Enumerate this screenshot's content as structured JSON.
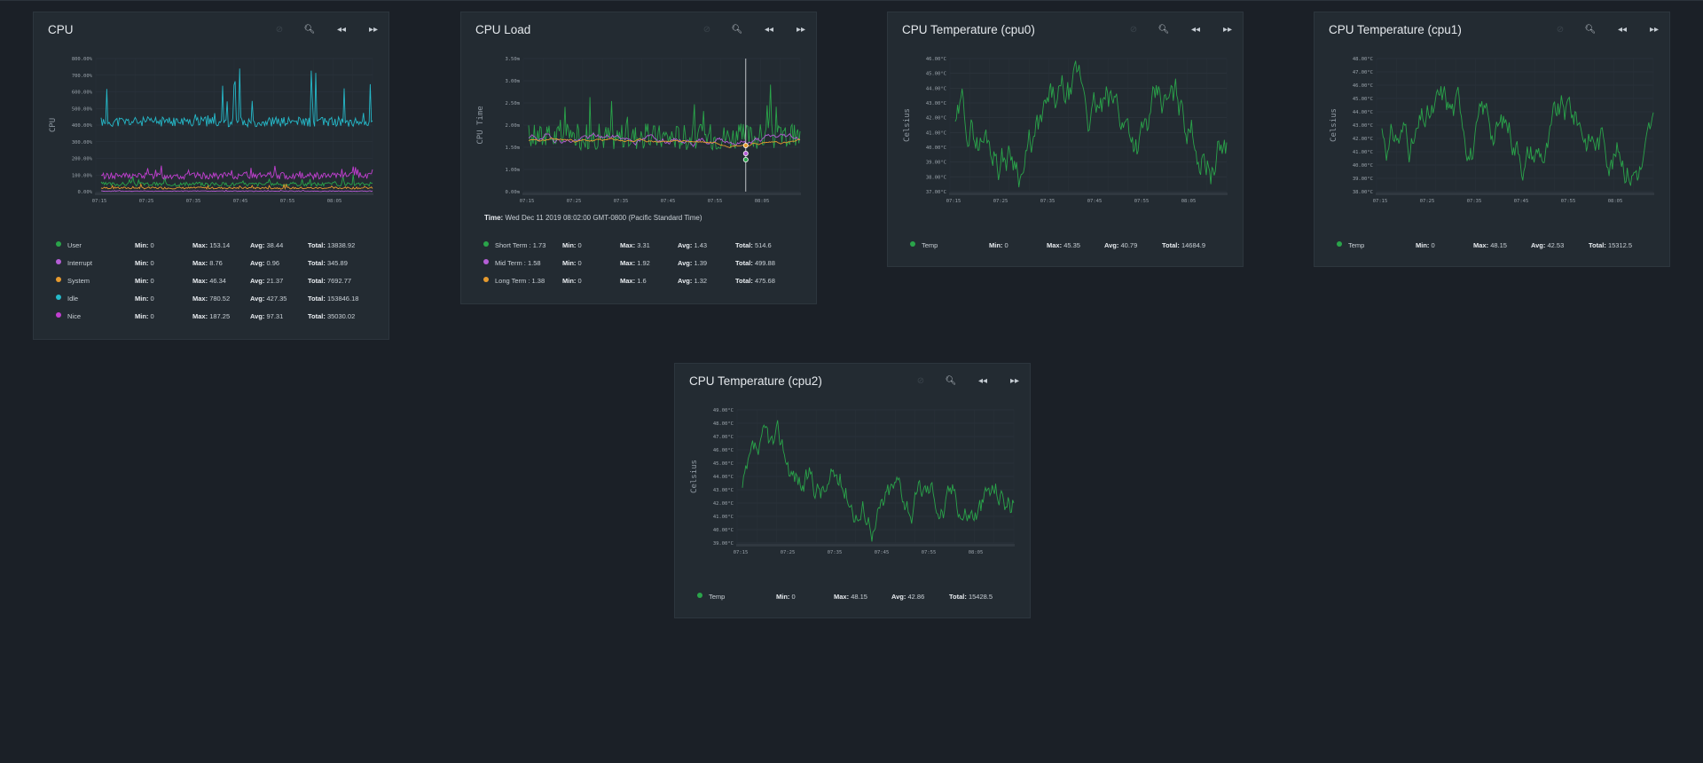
{
  "colors": {
    "green": "#2aa44a",
    "purple": "#b55ed6",
    "orange": "#e69a2e",
    "cyan": "#25b9c9",
    "magenta": "#c13fd0"
  },
  "toolbar_icons": [
    "reset-zoom-icon",
    "zoom-icon",
    "rewind-icon",
    "fast-forward-icon"
  ],
  "panels": [
    {
      "id": "cpu",
      "title": "CPU",
      "chart_data": {
        "type": "line",
        "ylabel": "CPU",
        "y_ticks": [
          "0.00%",
          "100.00%",
          "200.00%",
          "300.00%",
          "400.00%",
          "500.00%",
          "600.00%",
          "700.00%",
          "800.00%"
        ],
        "x_ticks": [
          "07:15",
          "07:25",
          "07:35",
          "07:45",
          "07:55",
          "08:05"
        ],
        "ylim": [
          0,
          800
        ],
        "series": [
          {
            "name": "User",
            "color": "#2aa44a",
            "base": 45,
            "noise": 12,
            "spike": 55,
            "seed": 3
          },
          {
            "name": "Interrupt",
            "color": "#b55ed6",
            "base": 3,
            "noise": 2,
            "spike": 4,
            "seed": 5
          },
          {
            "name": "System",
            "color": "#e69a2e",
            "base": 22,
            "noise": 6,
            "spike": 20,
            "seed": 7
          },
          {
            "name": "Idle",
            "color": "#25b9c9",
            "base": 420,
            "noise": 30,
            "spike": 340,
            "seed": 11
          },
          {
            "name": "Nice",
            "color": "#c13fd0",
            "base": 95,
            "noise": 20,
            "spike": 70,
            "seed": 13
          }
        ]
      },
      "legend": [
        {
          "name": "User",
          "color": "#2aa44a",
          "min": "0",
          "max": "153.14",
          "avg": "38.44",
          "total": "13838.92"
        },
        {
          "name": "Interrupt",
          "color": "#b55ed6",
          "min": "0",
          "max": "8.76",
          "avg": "0.96",
          "total": "345.89"
        },
        {
          "name": "System",
          "color": "#e69a2e",
          "min": "0",
          "max": "46.34",
          "avg": "21.37",
          "total": "7692.77"
        },
        {
          "name": "Idle",
          "color": "#25b9c9",
          "min": "0",
          "max": "780.52",
          "avg": "427.35",
          "total": "153846.18"
        },
        {
          "name": "Nice",
          "color": "#c13fd0",
          "min": "0",
          "max": "187.25",
          "avg": "97.31",
          "total": "35030.02"
        }
      ]
    },
    {
      "id": "cpu-load",
      "title": "CPU Load",
      "time_label": "Time:",
      "time_value": "Wed Dec 11 2019 08:02:00 GMT-0800 (Pacific Standard Time)",
      "chart_data": {
        "type": "line",
        "ylabel": "CPU Time",
        "y_ticks": [
          "0.00m",
          "1.00m",
          "1.50m",
          "2.00m",
          "2.50m",
          "3.00m",
          "3.50m"
        ],
        "x_ticks": [
          "07:15",
          "07:25",
          "07:35",
          "07:45",
          "07:55",
          "08:05"
        ],
        "ylim": [
          0,
          3.5
        ],
        "series": [
          {
            "name": "Short Term",
            "color": "#2aa44a",
            "base": 1.45,
            "noise": 0.35,
            "spike": 1.6,
            "seed": 17
          },
          {
            "name": "Mid Term",
            "color": "#b55ed6",
            "base": 1.4,
            "noise": 0.12,
            "spike": 0.5,
            "seed": 19
          },
          {
            "name": "Long Term",
            "color": "#e69a2e",
            "base": 1.32,
            "noise": 0.05,
            "spike": 0.1,
            "seed": 23
          }
        ]
      },
      "legend": [
        {
          "name": "Short Term : 1.73",
          "color": "#2aa44a",
          "min": "0",
          "max": "3.31",
          "avg": "1.43",
          "total": "514.6"
        },
        {
          "name": "Mid Term : 1.58",
          "color": "#b55ed6",
          "min": "0",
          "max": "1.92",
          "avg": "1.39",
          "total": "499.88"
        },
        {
          "name": "Long Term : 1.38",
          "color": "#e69a2e",
          "min": "0",
          "max": "1.6",
          "avg": "1.32",
          "total": "475.68"
        }
      ]
    },
    {
      "id": "cpu0",
      "title": "CPU Temperature (cpu0)",
      "chart_data": {
        "type": "line",
        "ylabel": "Celsius",
        "y_ticks": [
          "37.00°C",
          "38.00°C",
          "39.00°C",
          "40.00°C",
          "41.00°C",
          "42.00°C",
          "43.00°C",
          "44.00°C",
          "45.00°C",
          "46.00°C"
        ],
        "x_ticks": [
          "07:15",
          "07:25",
          "07:35",
          "07:45",
          "07:55",
          "08:05"
        ],
        "ylim": [
          37,
          46
        ],
        "series": [
          {
            "name": "Temp",
            "color": "#2aa44a",
            "base": 40.8,
            "noise": 2.2,
            "spike": 2.5,
            "seed": 29
          }
        ]
      },
      "legend": [
        {
          "name": "Temp",
          "color": "#2aa44a",
          "min": "0",
          "max": "45.35",
          "avg": "40.79",
          "total": "14684.9"
        }
      ]
    },
    {
      "id": "cpu1",
      "title": "CPU Temperature (cpu1)",
      "chart_data": {
        "type": "line",
        "ylabel": "Celsius",
        "y_ticks": [
          "38.00°C",
          "39.00°C",
          "40.00°C",
          "41.00°C",
          "42.00°C",
          "43.00°C",
          "44.00°C",
          "45.00°C",
          "46.00°C",
          "47.00°C",
          "48.00°C"
        ],
        "x_ticks": [
          "07:15",
          "07:25",
          "07:35",
          "07:45",
          "07:55",
          "08:05"
        ],
        "ylim": [
          38,
          48
        ],
        "series": [
          {
            "name": "Temp",
            "color": "#2aa44a",
            "base": 42.5,
            "noise": 2.2,
            "spike": 3,
            "seed": 31
          }
        ]
      },
      "legend": [
        {
          "name": "Temp",
          "color": "#2aa44a",
          "min": "0",
          "max": "48.15",
          "avg": "42.53",
          "total": "15312.5"
        }
      ]
    },
    {
      "id": "cpu2",
      "title": "CPU Temperature (cpu2)",
      "chart_data": {
        "type": "line",
        "ylabel": "Celsius",
        "y_ticks": [
          "39.00°C",
          "40.00°C",
          "41.00°C",
          "42.00°C",
          "43.00°C",
          "44.00°C",
          "45.00°C",
          "46.00°C",
          "47.00°C",
          "48.00°C",
          "49.00°C"
        ],
        "x_ticks": [
          "07:15",
          "07:25",
          "07:35",
          "07:45",
          "07:55",
          "08:05"
        ],
        "ylim": [
          39,
          49
        ],
        "series": [
          {
            "name": "Temp",
            "color": "#2aa44a",
            "base": 42.9,
            "noise": 1.9,
            "spike": 3,
            "seed": 37
          }
        ]
      },
      "legend": [
        {
          "name": "Temp",
          "color": "#2aa44a",
          "min": "0",
          "max": "48.15",
          "avg": "42.86",
          "total": "15428.5"
        }
      ]
    }
  ],
  "labels": {
    "min": "Min:",
    "max": "Max:",
    "avg": "Avg:",
    "total": "Total:"
  }
}
